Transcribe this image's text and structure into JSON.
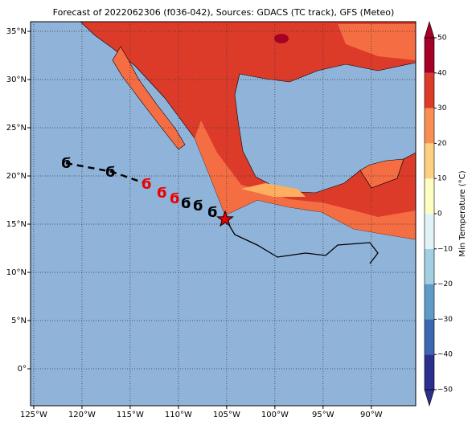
{
  "title": "Forecast of 2022062306 (f036-042), Sources: GDACS (TC track), GFS (Meteo)",
  "map": {
    "xlim": [
      -125.33,
      -85.4
    ],
    "ylim": [
      -3.83,
      36
    ],
    "xticks": [
      {
        "value": -125,
        "label": "125°W"
      },
      {
        "value": -120,
        "label": "120°W"
      },
      {
        "value": -115,
        "label": "115°W"
      },
      {
        "value": -110,
        "label": "110°W"
      },
      {
        "value": -105,
        "label": "105°W"
      },
      {
        "value": -100,
        "label": "100°W"
      },
      {
        "value": -95,
        "label": "95°W"
      },
      {
        "value": -90,
        "label": "90°W"
      }
    ],
    "yticks": [
      {
        "value": 0,
        "label": "0°"
      },
      {
        "value": 5,
        "label": "5°N"
      },
      {
        "value": 10,
        "label": "10°N"
      },
      {
        "value": 15,
        "label": "15°N"
      },
      {
        "value": 20,
        "label": "20°N"
      },
      {
        "value": 25,
        "label": "25°N"
      },
      {
        "value": 30,
        "label": "30°N"
      },
      {
        "value": 35,
        "label": "35°N"
      }
    ],
    "grid": true
  },
  "colorbar": {
    "label": "Min Temperature (°C)",
    "lim": [
      -50,
      50
    ],
    "ticks": [
      {
        "value": -50,
        "label": "−50"
      },
      {
        "value": -40,
        "label": "−40"
      },
      {
        "value": -30,
        "label": "−30"
      },
      {
        "value": -20,
        "label": "−20"
      },
      {
        "value": -10,
        "label": "−10"
      },
      0,
      10,
      20,
      30,
      40,
      50
    ],
    "colors": [
      "#2c2f8e",
      "#3b66b0",
      "#5e9bc9",
      "#a3cfe3",
      "#e2f3f8",
      "#fefdc0",
      "#fdcf82",
      "#f88e52",
      "#dd3b2a",
      "#a50026"
    ]
  }
}
